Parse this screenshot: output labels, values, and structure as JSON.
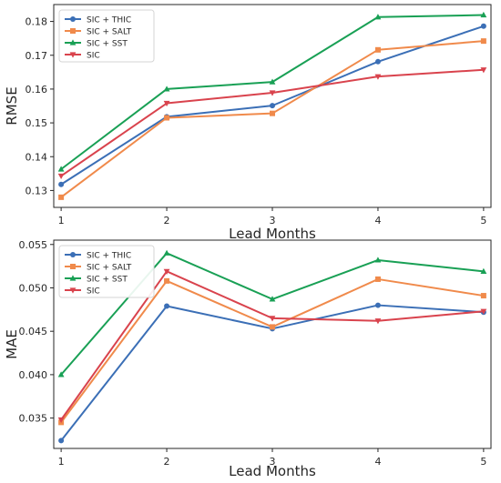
{
  "chart_data": [
    {
      "type": "line",
      "x": [
        1,
        2,
        3,
        4,
        5
      ],
      "xlabel": "Lead Months",
      "ylabel": "RMSE",
      "ylim": [
        0.125,
        0.185
      ],
      "yticks": [
        "0.13",
        "0.14",
        "0.15",
        "0.16",
        "0.17",
        "0.18"
      ],
      "xticks": [
        "1",
        "2",
        "3",
        "4",
        "5"
      ],
      "grid": false,
      "legend": "top-left",
      "series": [
        {
          "name": "SIC + THIC",
          "color": "#3b6fb6",
          "marker": "circle",
          "values": [
            0.1318,
            0.1518,
            0.1551,
            0.1681,
            0.1786
          ]
        },
        {
          "name": "SIC + SALT",
          "color": "#f08a4b",
          "marker": "square",
          "values": [
            0.128,
            0.1515,
            0.1528,
            0.1716,
            0.1742
          ]
        },
        {
          "name": "SIC + SST",
          "color": "#19a055",
          "marker": "triangle-up",
          "values": [
            0.1363,
            0.16,
            0.1621,
            0.1813,
            0.1819
          ]
        },
        {
          "name": "SIC",
          "color": "#d9434d",
          "marker": "triangle-down",
          "values": [
            0.1343,
            0.1558,
            0.1589,
            0.1637,
            0.1657
          ]
        }
      ]
    },
    {
      "type": "line",
      "x": [
        1,
        2,
        3,
        4,
        5
      ],
      "xlabel": "Lead Months",
      "ylabel": "MAE",
      "ylim": [
        0.0315,
        0.0555
      ],
      "yticks": [
        "0.035",
        "0.040",
        "0.045",
        "0.050",
        "0.055"
      ],
      "xticks": [
        "1",
        "2",
        "3",
        "4",
        "5"
      ],
      "grid": false,
      "legend": "top-left",
      "series": [
        {
          "name": "SIC + THIC",
          "color": "#3b6fb6",
          "marker": "circle",
          "values": [
            0.0324,
            0.0479,
            0.0453,
            0.048,
            0.0472
          ]
        },
        {
          "name": "SIC + SALT",
          "color": "#f08a4b",
          "marker": "square",
          "values": [
            0.0345,
            0.0508,
            0.0455,
            0.051,
            0.0491
          ]
        },
        {
          "name": "SIC + SST",
          "color": "#19a055",
          "marker": "triangle-up",
          "values": [
            0.04,
            0.054,
            0.0487,
            0.0532,
            0.0519
          ]
        },
        {
          "name": "SIC",
          "color": "#d9434d",
          "marker": "triangle-down",
          "values": [
            0.0348,
            0.0519,
            0.0465,
            0.0462,
            0.0473
          ]
        }
      ]
    }
  ]
}
